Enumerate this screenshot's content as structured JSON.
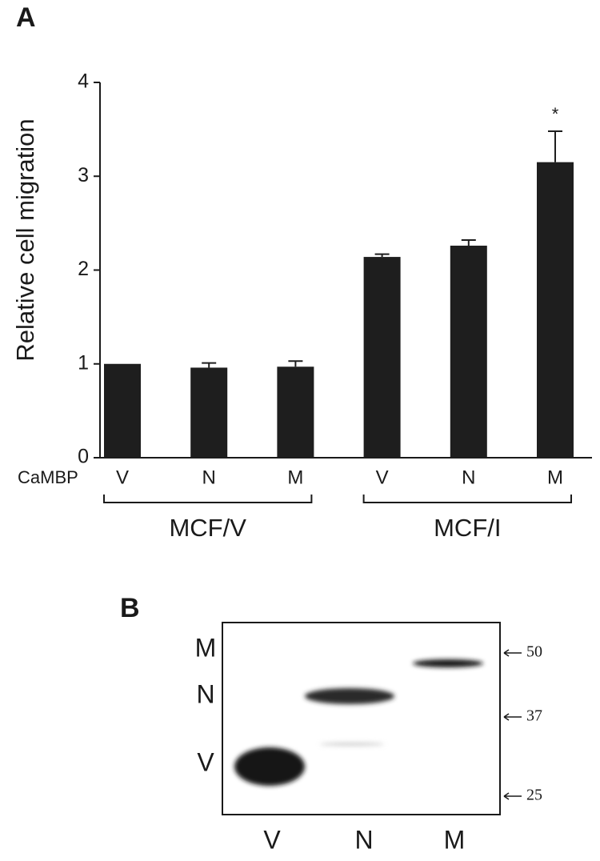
{
  "chart_data": {
    "type": "bar",
    "panel": "A",
    "ylabel": "Relative cell migration",
    "category_axis_label": "CaMBP",
    "categories": [
      "V",
      "N",
      "M",
      "V",
      "N",
      "M"
    ],
    "values": [
      1.0,
      0.96,
      0.97,
      2.14,
      2.26,
      3.15
    ],
    "errors": [
      null,
      0.05,
      0.06,
      0.03,
      0.06,
      0.33
    ],
    "groups": [
      "MCF/V",
      "MCF/I"
    ],
    "annotation": "*",
    "color": "#1e1e1e",
    "ylim": [
      0,
      4
    ],
    "yticks": [
      0,
      1,
      2,
      3,
      4
    ]
  },
  "blot": {
    "panel": "B",
    "row_labels": [
      "M",
      "N",
      "V"
    ],
    "markers": [
      50,
      37,
      25
    ],
    "lanes": [
      "V",
      "N",
      "M"
    ]
  }
}
